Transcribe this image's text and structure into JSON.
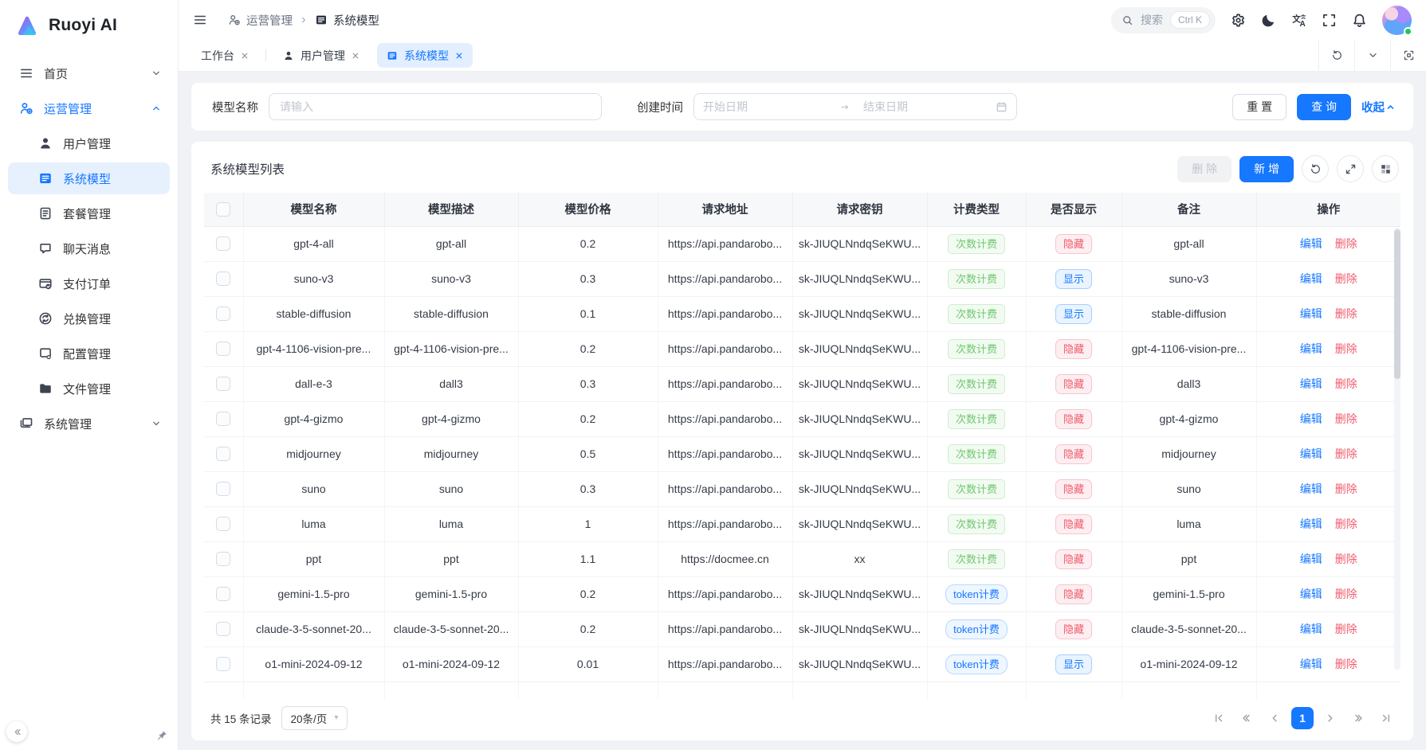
{
  "app": {
    "name": "Ruoyi AI"
  },
  "sidebar": {
    "menu": [
      {
        "label": "首页",
        "icon": "menu-lines-icon",
        "level": 0,
        "chevron": "down"
      },
      {
        "label": "运营管理",
        "icon": "operations-icon",
        "level": 0,
        "chevron": "up",
        "accent": true
      },
      {
        "label": "用户管理",
        "icon": "user-icon",
        "level": 1
      },
      {
        "label": "系统模型",
        "icon": "model-icon",
        "level": 1,
        "active": true
      },
      {
        "label": "套餐管理",
        "icon": "package-icon",
        "level": 1
      },
      {
        "label": "聊天消息",
        "icon": "chat-icon",
        "level": 1
      },
      {
        "label": "支付订单",
        "icon": "payment-icon",
        "level": 1
      },
      {
        "label": "兑换管理",
        "icon": "redeem-icon",
        "level": 1
      },
      {
        "label": "配置管理",
        "icon": "config-icon",
        "level": 1
      },
      {
        "label": "文件管理",
        "icon": "file-icon",
        "level": 1
      },
      {
        "label": "系统管理",
        "icon": "system-icon",
        "level": 0,
        "chevron": "down"
      }
    ]
  },
  "header": {
    "breadcrumb": {
      "section": "运营管理",
      "page": "系统模型"
    },
    "search_placeholder": "搜索",
    "search_shortcut": "Ctrl K"
  },
  "tabs": [
    {
      "label": "工作台"
    },
    {
      "label": "用户管理",
      "icon": "user-icon"
    },
    {
      "label": "系统模型",
      "icon": "model-icon",
      "active": true
    }
  ],
  "filter": {
    "model_name_label": "模型名称",
    "model_name_placeholder": "请输入",
    "create_time_label": "创建时间",
    "start_placeholder": "开始日期",
    "end_placeholder": "结束日期",
    "reset_label": "重 置",
    "query_label": "查 询",
    "collapse_label": "收起"
  },
  "table": {
    "title": "系统模型列表",
    "delete_label": "删 除",
    "add_label": "新 增",
    "columns": [
      "模型名称",
      "模型描述",
      "模型价格",
      "请求地址",
      "请求密钥",
      "计费类型",
      "是否显示",
      "备注",
      "操作"
    ],
    "actions": {
      "edit": "编辑",
      "delete": "删除"
    },
    "rows": [
      {
        "name": "gpt-4-all",
        "desc": "gpt-all",
        "price": "0.2",
        "url": "https://api.pandarobo...",
        "key": "sk-JIUQLNndqSeKWU...",
        "billing": "次数计费",
        "billing_type": "count",
        "visible": "隐藏",
        "visible_type": "hidden",
        "remark": "gpt-all"
      },
      {
        "name": "suno-v3",
        "desc": "suno-v3",
        "price": "0.3",
        "url": "https://api.pandarobo...",
        "key": "sk-JIUQLNndqSeKWU...",
        "billing": "次数计费",
        "billing_type": "count",
        "visible": "显示",
        "visible_type": "shown",
        "remark": "suno-v3"
      },
      {
        "name": "stable-diffusion",
        "desc": "stable-diffusion",
        "price": "0.1",
        "url": "https://api.pandarobo...",
        "key": "sk-JIUQLNndqSeKWU...",
        "billing": "次数计费",
        "billing_type": "count",
        "visible": "显示",
        "visible_type": "shown",
        "remark": "stable-diffusion"
      },
      {
        "name": "gpt-4-1106-vision-pre...",
        "desc": "gpt-4-1106-vision-pre...",
        "price": "0.2",
        "url": "https://api.pandarobo...",
        "key": "sk-JIUQLNndqSeKWU...",
        "billing": "次数计费",
        "billing_type": "count",
        "visible": "隐藏",
        "visible_type": "hidden",
        "remark": "gpt-4-1106-vision-pre..."
      },
      {
        "name": "dall-e-3",
        "desc": "dall3",
        "price": "0.3",
        "url": "https://api.pandarobo...",
        "key": "sk-JIUQLNndqSeKWU...",
        "billing": "次数计费",
        "billing_type": "count",
        "visible": "隐藏",
        "visible_type": "hidden",
        "remark": "dall3"
      },
      {
        "name": "gpt-4-gizmo",
        "desc": "gpt-4-gizmo",
        "price": "0.2",
        "url": "https://api.pandarobo...",
        "key": "sk-JIUQLNndqSeKWU...",
        "billing": "次数计费",
        "billing_type": "count",
        "visible": "隐藏",
        "visible_type": "hidden",
        "remark": "gpt-4-gizmo"
      },
      {
        "name": "midjourney",
        "desc": "midjourney",
        "price": "0.5",
        "url": "https://api.pandarobo...",
        "key": "sk-JIUQLNndqSeKWU...",
        "billing": "次数计费",
        "billing_type": "count",
        "visible": "隐藏",
        "visible_type": "hidden",
        "remark": "midjourney"
      },
      {
        "name": "suno",
        "desc": "suno",
        "price": "0.3",
        "url": "https://api.pandarobo...",
        "key": "sk-JIUQLNndqSeKWU...",
        "billing": "次数计费",
        "billing_type": "count",
        "visible": "隐藏",
        "visible_type": "hidden",
        "remark": "suno"
      },
      {
        "name": "luma",
        "desc": "luma",
        "price": "1",
        "url": "https://api.pandarobo...",
        "key": "sk-JIUQLNndqSeKWU...",
        "billing": "次数计费",
        "billing_type": "count",
        "visible": "隐藏",
        "visible_type": "hidden",
        "remark": "luma"
      },
      {
        "name": "ppt",
        "desc": "ppt",
        "price": "1.1",
        "url": "https://docmee.cn",
        "key": "xx",
        "billing": "次数计费",
        "billing_type": "count",
        "visible": "隐藏",
        "visible_type": "hidden",
        "remark": "ppt"
      },
      {
        "name": "gemini-1.5-pro",
        "desc": "gemini-1.5-pro",
        "price": "0.2",
        "url": "https://api.pandarobo...",
        "key": "sk-JIUQLNndqSeKWU...",
        "billing": "token计费",
        "billing_type": "token",
        "visible": "隐藏",
        "visible_type": "hidden",
        "remark": "gemini-1.5-pro"
      },
      {
        "name": "claude-3-5-sonnet-20...",
        "desc": "claude-3-5-sonnet-20...",
        "price": "0.2",
        "url": "https://api.pandarobo...",
        "key": "sk-JIUQLNndqSeKWU...",
        "billing": "token计费",
        "billing_type": "token",
        "visible": "隐藏",
        "visible_type": "hidden",
        "remark": "claude-3-5-sonnet-20..."
      },
      {
        "name": "o1-mini-2024-09-12",
        "desc": "o1-mini-2024-09-12",
        "price": "0.01",
        "url": "https://api.pandarobo...",
        "key": "sk-JIUQLNndqSeKWU...",
        "billing": "token计费",
        "billing_type": "token",
        "visible": "显示",
        "visible_type": "shown",
        "remark": "o1-mini-2024-09-12"
      }
    ]
  },
  "pagination": {
    "total_label": "共 15 条记录",
    "page_size_label": "20条/页",
    "current_page": "1"
  },
  "colors": {
    "primary": "#1677ff",
    "badge_green": "#6fc76f",
    "badge_red": "#f05b6c"
  }
}
